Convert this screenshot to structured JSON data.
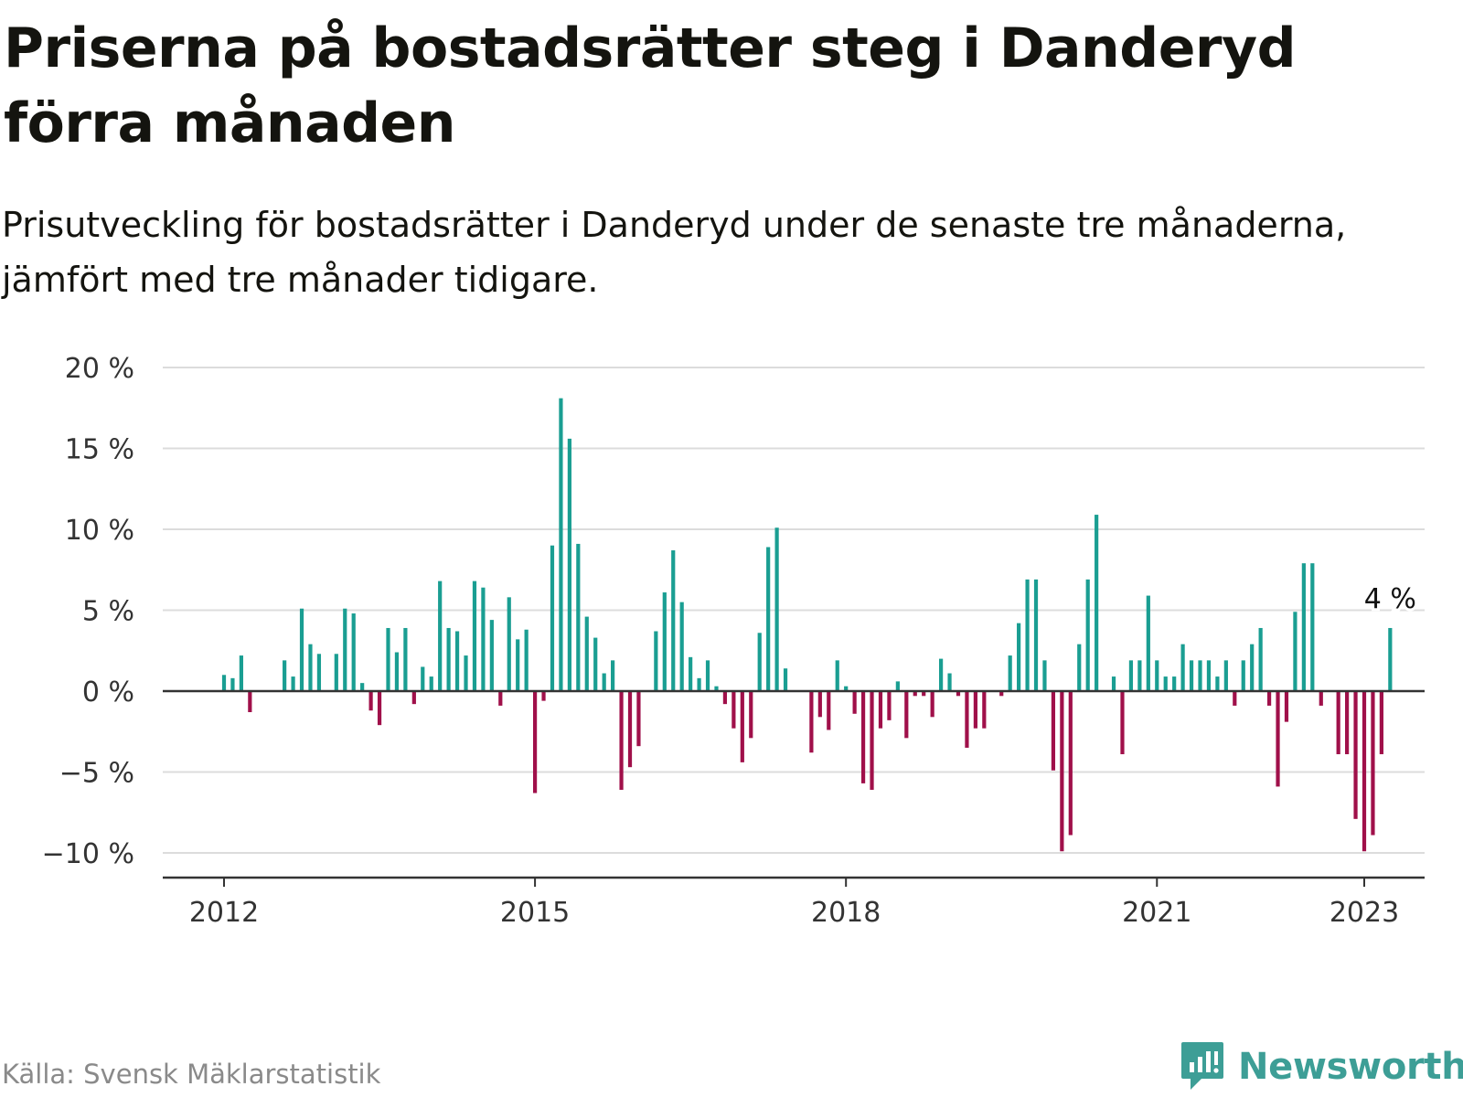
{
  "header": {
    "title": "Priserna på bostadsrätter steg i Danderyd förra månaden",
    "subtitle": "Prisutveckling för bostadsrätter i Danderyd under de senaste tre månaderna, jämfört med tre månader tidigare."
  },
  "footer": {
    "source": "Källa: Svensk Mäklarstatistik",
    "brand": "Newsworthy",
    "brand_icon": "newsworthy-logo-icon"
  },
  "colors": {
    "positive": "#1a9e92",
    "negative": "#a0104a",
    "grid": "#dcdcdc",
    "axis": "#333333",
    "brand": "#3d9e96"
  },
  "chart_data": {
    "type": "bar",
    "title": "",
    "xlabel": "",
    "ylabel": "",
    "ylim": [
      -11,
      21
    ],
    "y_ticks": [
      -10,
      -5,
      0,
      5,
      10,
      15,
      20
    ],
    "y_tick_labels": [
      "−10 %",
      "−5 %",
      "0 %",
      "5 %",
      "10 %",
      "15 %",
      "20 %"
    ],
    "x_ticks": [
      2012,
      2015,
      2018,
      2021,
      2023
    ],
    "x_tick_labels": [
      "2012",
      "2015",
      "2018",
      "2021",
      "2023"
    ],
    "grid": true,
    "last_label": "4 %",
    "series": [
      {
        "values": [
          {
            "x": "2012-01",
            "y": 1.0
          },
          {
            "x": "2012-02",
            "y": 0.8
          },
          {
            "x": "2012-03",
            "y": 2.2
          },
          {
            "x": "2012-04",
            "y": -1.3
          },
          {
            "x": "2012-05",
            "y": 0.0
          },
          {
            "x": "2012-06",
            "y": 0.0
          },
          {
            "x": "2012-07",
            "y": 0.0
          },
          {
            "x": "2012-08",
            "y": 1.9
          },
          {
            "x": "2012-09",
            "y": 0.9
          },
          {
            "x": "2012-10",
            "y": 5.1
          },
          {
            "x": "2012-11",
            "y": 2.9
          },
          {
            "x": "2012-12",
            "y": 2.3
          },
          {
            "x": "2013-01",
            "y": 0.0
          },
          {
            "x": "2013-02",
            "y": 2.3
          },
          {
            "x": "2013-03",
            "y": 5.1
          },
          {
            "x": "2013-04",
            "y": 4.8
          },
          {
            "x": "2013-05",
            "y": 0.5
          },
          {
            "x": "2013-06",
            "y": -1.2
          },
          {
            "x": "2013-07",
            "y": -2.1
          },
          {
            "x": "2013-08",
            "y": 3.9
          },
          {
            "x": "2013-09",
            "y": 2.4
          },
          {
            "x": "2013-10",
            "y": 3.9
          },
          {
            "x": "2013-11",
            "y": -0.8
          },
          {
            "x": "2013-12",
            "y": 1.5
          },
          {
            "x": "2014-01",
            "y": 0.9
          },
          {
            "x": "2014-02",
            "y": 6.8
          },
          {
            "x": "2014-03",
            "y": 3.9
          },
          {
            "x": "2014-04",
            "y": 3.7
          },
          {
            "x": "2014-05",
            "y": 2.2
          },
          {
            "x": "2014-06",
            "y": 6.8
          },
          {
            "x": "2014-07",
            "y": 6.4
          },
          {
            "x": "2014-08",
            "y": 4.4
          },
          {
            "x": "2014-09",
            "y": -0.9
          },
          {
            "x": "2014-10",
            "y": 5.8
          },
          {
            "x": "2014-11",
            "y": 3.2
          },
          {
            "x": "2014-12",
            "y": 3.8
          },
          {
            "x": "2015-01",
            "y": -6.3
          },
          {
            "x": "2015-02",
            "y": -0.6
          },
          {
            "x": "2015-03",
            "y": 9.0
          },
          {
            "x": "2015-04",
            "y": 18.1
          },
          {
            "x": "2015-05",
            "y": 15.6
          },
          {
            "x": "2015-06",
            "y": 9.1
          },
          {
            "x": "2015-07",
            "y": 4.6
          },
          {
            "x": "2015-08",
            "y": 3.3
          },
          {
            "x": "2015-09",
            "y": 1.1
          },
          {
            "x": "2015-10",
            "y": 1.9
          },
          {
            "x": "2015-11",
            "y": -6.1
          },
          {
            "x": "2015-12",
            "y": -4.7
          },
          {
            "x": "2016-01",
            "y": -3.4
          },
          {
            "x": "2016-02",
            "y": 0.0
          },
          {
            "x": "2016-03",
            "y": 3.7
          },
          {
            "x": "2016-04",
            "y": 6.1
          },
          {
            "x": "2016-05",
            "y": 8.7
          },
          {
            "x": "2016-06",
            "y": 5.5
          },
          {
            "x": "2016-07",
            "y": 2.1
          },
          {
            "x": "2016-08",
            "y": 0.8
          },
          {
            "x": "2016-09",
            "y": 1.9
          },
          {
            "x": "2016-10",
            "y": 0.3
          },
          {
            "x": "2016-11",
            "y": -0.8
          },
          {
            "x": "2016-12",
            "y": -2.3
          },
          {
            "x": "2017-01",
            "y": -4.4
          },
          {
            "x": "2017-02",
            "y": -2.9
          },
          {
            "x": "2017-03",
            "y": 3.6
          },
          {
            "x": "2017-04",
            "y": 8.9
          },
          {
            "x": "2017-05",
            "y": 10.1
          },
          {
            "x": "2017-06",
            "y": 1.4
          },
          {
            "x": "2017-07",
            "y": 0.0
          },
          {
            "x": "2017-08",
            "y": 0.0
          },
          {
            "x": "2017-09",
            "y": -3.8
          },
          {
            "x": "2017-10",
            "y": -1.6
          },
          {
            "x": "2017-11",
            "y": -2.4
          },
          {
            "x": "2017-12",
            "y": 1.9
          },
          {
            "x": "2018-01",
            "y": 0.3
          },
          {
            "x": "2018-02",
            "y": -1.4
          },
          {
            "x": "2018-03",
            "y": -5.7
          },
          {
            "x": "2018-04",
            "y": -6.1
          },
          {
            "x": "2018-05",
            "y": -2.3
          },
          {
            "x": "2018-06",
            "y": -1.8
          },
          {
            "x": "2018-07",
            "y": 0.6
          },
          {
            "x": "2018-08",
            "y": -2.9
          },
          {
            "x": "2018-09",
            "y": -0.3
          },
          {
            "x": "2018-10",
            "y": -0.3
          },
          {
            "x": "2018-11",
            "y": -1.6
          },
          {
            "x": "2018-12",
            "y": 2.0
          },
          {
            "x": "2019-01",
            "y": 1.1
          },
          {
            "x": "2019-02",
            "y": -0.3
          },
          {
            "x": "2019-03",
            "y": -3.5
          },
          {
            "x": "2019-04",
            "y": -2.3
          },
          {
            "x": "2019-05",
            "y": -2.3
          },
          {
            "x": "2019-06",
            "y": 0.0
          },
          {
            "x": "2019-07",
            "y": -0.3
          },
          {
            "x": "2019-08",
            "y": 2.2
          },
          {
            "x": "2019-09",
            "y": 4.2
          },
          {
            "x": "2019-10",
            "y": 6.9
          },
          {
            "x": "2019-11",
            "y": 6.9
          },
          {
            "x": "2019-12",
            "y": 1.9
          },
          {
            "x": "2020-01",
            "y": -4.9
          },
          {
            "x": "2020-02",
            "y": -9.9
          },
          {
            "x": "2020-03",
            "y": -8.9
          },
          {
            "x": "2020-04",
            "y": 2.9
          },
          {
            "x": "2020-05",
            "y": 6.9
          },
          {
            "x": "2020-06",
            "y": 10.9
          },
          {
            "x": "2020-07",
            "y": 0.0
          },
          {
            "x": "2020-08",
            "y": 0.9
          },
          {
            "x": "2020-09",
            "y": -3.9
          },
          {
            "x": "2020-10",
            "y": 1.9
          },
          {
            "x": "2020-11",
            "y": 1.9
          },
          {
            "x": "2020-12",
            "y": 5.9
          },
          {
            "x": "2021-01",
            "y": 1.9
          },
          {
            "x": "2021-02",
            "y": 0.9
          },
          {
            "x": "2021-03",
            "y": 0.9
          },
          {
            "x": "2021-04",
            "y": 2.9
          },
          {
            "x": "2021-05",
            "y": 1.9
          },
          {
            "x": "2021-06",
            "y": 1.9
          },
          {
            "x": "2021-07",
            "y": 1.9
          },
          {
            "x": "2021-08",
            "y": 0.9
          },
          {
            "x": "2021-09",
            "y": 1.9
          },
          {
            "x": "2021-10",
            "y": -0.9
          },
          {
            "x": "2021-11",
            "y": 1.9
          },
          {
            "x": "2021-12",
            "y": 2.9
          },
          {
            "x": "2022-01",
            "y": 3.9
          },
          {
            "x": "2022-02",
            "y": -0.9
          },
          {
            "x": "2022-03",
            "y": -5.9
          },
          {
            "x": "2022-04",
            "y": -1.9
          },
          {
            "x": "2022-05",
            "y": 4.9
          },
          {
            "x": "2022-06",
            "y": 7.9
          },
          {
            "x": "2022-07",
            "y": 7.9
          },
          {
            "x": "2022-08",
            "y": -0.9
          },
          {
            "x": "2022-09",
            "y": 0.0
          },
          {
            "x": "2022-10",
            "y": -3.9
          },
          {
            "x": "2022-11",
            "y": -3.9
          },
          {
            "x": "2022-12",
            "y": -7.9
          },
          {
            "x": "2023-01",
            "y": -9.9
          },
          {
            "x": "2023-02",
            "y": -8.9
          },
          {
            "x": "2023-03",
            "y": -3.9
          },
          {
            "x": "2023-04",
            "y": 3.9
          }
        ]
      }
    ]
  }
}
